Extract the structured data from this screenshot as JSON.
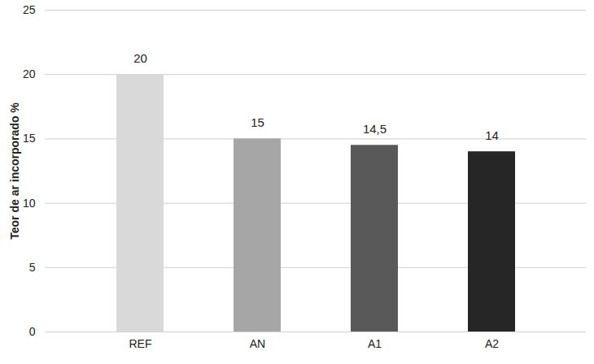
{
  "chart_data": {
    "type": "bar",
    "y_label": "Teor de ar incorporado %",
    "categories": [
      "REF",
      "AN",
      "A1",
      "A2"
    ],
    "values": [
      20,
      15,
      14.5,
      14
    ],
    "value_labels": [
      "20",
      "15",
      "14,5",
      "14"
    ],
    "colors": [
      "#d9d9d9",
      "#a6a6a6",
      "#595959",
      "#262626"
    ],
    "ylim": [
      0,
      25
    ],
    "yticks": [
      0,
      5,
      10,
      15,
      20,
      25
    ],
    "grid": true,
    "data_labels": true
  }
}
